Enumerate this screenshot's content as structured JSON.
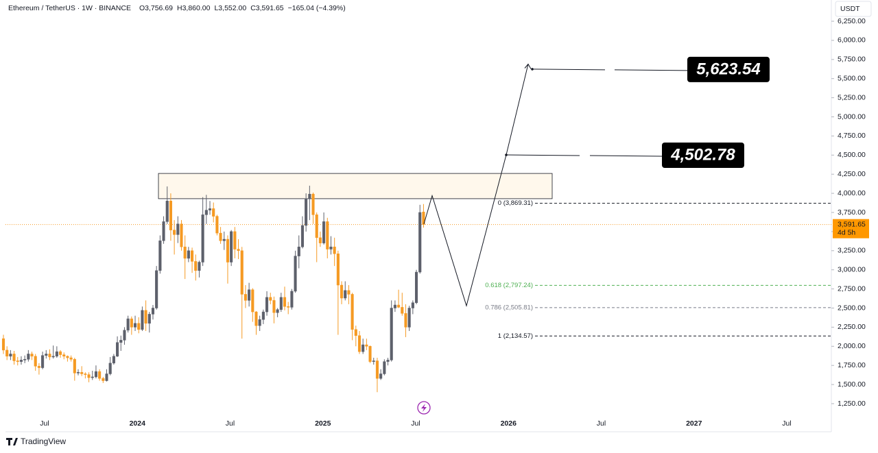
{
  "chart_data": {
    "type": "candlestick",
    "title": "Ethereum / TetherUS · 1W · BINANCE",
    "ohlc_labels": [
      "O3,756.69",
      "H3,860.00",
      "L3,552.00",
      "C3,591.65",
      "−165.04 (−4.39%)"
    ],
    "currency": "USDT",
    "up_color": "#5d606b",
    "down_color": "#f59a23",
    "ylim": [
      1250,
      6250
    ],
    "yticks": [
      {
        "value": 1250,
        "label": "1,250.00"
      },
      {
        "value": 1500,
        "label": "1,500.00"
      },
      {
        "value": 1750,
        "label": "1,750.00"
      },
      {
        "value": 2000,
        "label": "2,000.00"
      },
      {
        "value": 2250,
        "label": "2,250.00"
      },
      {
        "value": 2500,
        "label": "2,500.00"
      },
      {
        "value": 2750,
        "label": "2,750.00"
      },
      {
        "value": 3000,
        "label": "3,000.00"
      },
      {
        "value": 3250,
        "label": "3,250.00"
      },
      {
        "value": 3500,
        "label": "3,500.00"
      },
      {
        "value": 3750,
        "label": "3,750.00"
      },
      {
        "value": 4000,
        "label": "4,000.00"
      },
      {
        "value": 4250,
        "label": "4,250.00"
      },
      {
        "value": 4500,
        "label": "4,500.00"
      },
      {
        "value": 4750,
        "label": "4,750.00"
      },
      {
        "value": 5000,
        "label": "5,000.00"
      },
      {
        "value": 5250,
        "label": "5,250.00"
      },
      {
        "value": 5500,
        "label": "5,500.00"
      },
      {
        "value": 5750,
        "label": "5,750.00"
      },
      {
        "value": 6000,
        "label": "6,000.00"
      },
      {
        "value": 6250,
        "label": "6,250.00"
      }
    ],
    "x_labels": [
      "Jul",
      "2024",
      "Jul",
      "2025",
      "Jul",
      "2026",
      "Jul",
      "2027",
      "Jul"
    ],
    "candles": [
      [
        2100,
        2150,
        1900,
        1950
      ],
      [
        1950,
        2000,
        1820,
        1870
      ],
      [
        1870,
        1950,
        1820,
        1900
      ],
      [
        1900,
        1940,
        1760,
        1810
      ],
      [
        1810,
        1860,
        1750,
        1800
      ],
      [
        1800,
        1870,
        1760,
        1820
      ],
      [
        1820,
        1880,
        1780,
        1830
      ],
      [
        1830,
        1950,
        1800,
        1900
      ],
      [
        1900,
        1930,
        1820,
        1870
      ],
      [
        1870,
        1900,
        1680,
        1740
      ],
      [
        1740,
        1780,
        1630,
        1720
      ],
      [
        1720,
        1930,
        1700,
        1880
      ],
      [
        1880,
        1950,
        1840,
        1900
      ],
      [
        1900,
        1960,
        1820,
        1860
      ],
      [
        1860,
        2010,
        1840,
        1870
      ],
      [
        1870,
        2000,
        1850,
        1930
      ],
      [
        1930,
        1950,
        1850,
        1890
      ],
      [
        1890,
        1920,
        1830,
        1870
      ],
      [
        1870,
        1880,
        1800,
        1850
      ],
      [
        1850,
        1880,
        1800,
        1830
      ],
      [
        1830,
        1850,
        1550,
        1650
      ],
      [
        1650,
        1700,
        1620,
        1660
      ],
      [
        1660,
        1740,
        1610,
        1640
      ],
      [
        1640,
        1660,
        1580,
        1630
      ],
      [
        1630,
        1660,
        1530,
        1590
      ],
      [
        1590,
        1680,
        1560,
        1600
      ],
      [
        1600,
        1750,
        1580,
        1670
      ],
      [
        1670,
        1700,
        1550,
        1580
      ],
      [
        1580,
        1600,
        1520,
        1550
      ],
      [
        1550,
        1700,
        1540,
        1640
      ],
      [
        1640,
        1860,
        1620,
        1780
      ],
      [
        1780,
        1900,
        1760,
        1870
      ],
      [
        1870,
        2130,
        1860,
        2050
      ],
      [
        2050,
        2140,
        1940,
        2080
      ],
      [
        2080,
        2250,
        2020,
        2210
      ],
      [
        2210,
        2400,
        2180,
        2360
      ],
      [
        2360,
        2390,
        2150,
        2250
      ],
      [
        2250,
        2400,
        2200,
        2300
      ],
      [
        2300,
        2380,
        2170,
        2220
      ],
      [
        2220,
        2520,
        2200,
        2470
      ],
      [
        2470,
        2600,
        2200,
        2300
      ],
      [
        2300,
        2450,
        2180,
        2420
      ],
      [
        2420,
        2540,
        2350,
        2500
      ],
      [
        2500,
        3050,
        2480,
        2990
      ],
      [
        2990,
        3450,
        2950,
        3380
      ],
      [
        3380,
        3700,
        3340,
        3630
      ],
      [
        3630,
        4090,
        3600,
        3900
      ],
      [
        3900,
        4000,
        3380,
        3520
      ],
      [
        3520,
        3650,
        3200,
        3460
      ],
      [
        3460,
        3700,
        3350,
        3600
      ],
      [
        3600,
        3650,
        3250,
        3300
      ],
      [
        3300,
        3450,
        2880,
        3150
      ],
      [
        3150,
        3300,
        3100,
        3250
      ],
      [
        3250,
        3290,
        2960,
        3110
      ],
      [
        3110,
        3200,
        2860,
        2990
      ],
      [
        2990,
        3120,
        2900,
        3100
      ],
      [
        3100,
        3950,
        3050,
        3720
      ],
      [
        3720,
        3980,
        3600,
        3780
      ],
      [
        3780,
        3900,
        3720,
        3800
      ],
      [
        3800,
        3880,
        3620,
        3700
      ],
      [
        3700,
        3720,
        3450,
        3480
      ],
      [
        3480,
        3560,
        3340,
        3380
      ],
      [
        3380,
        3500,
        3260,
        3400
      ],
      [
        3400,
        3450,
        2820,
        3100
      ],
      [
        3100,
        3520,
        3050,
        3500
      ],
      [
        3500,
        3560,
        3150,
        3270
      ],
      [
        3270,
        3400,
        3140,
        3250
      ],
      [
        3250,
        3300,
        2100,
        2680
      ],
      [
        2680,
        2800,
        2500,
        2600
      ],
      [
        2600,
        2830,
        2520,
        2740
      ],
      [
        2740,
        2760,
        2320,
        2450
      ],
      [
        2450,
        2460,
        2150,
        2270
      ],
      [
        2270,
        2400,
        2200,
        2350
      ],
      [
        2350,
        2480,
        2290,
        2450
      ],
      [
        2450,
        2720,
        2400,
        2640
      ],
      [
        2640,
        2700,
        2550,
        2600
      ],
      [
        2600,
        2650,
        2300,
        2440
      ],
      [
        2440,
        2500,
        2380,
        2480
      ],
      [
        2480,
        2700,
        2450,
        2640
      ],
      [
        2640,
        2780,
        2470,
        2520
      ],
      [
        2520,
        2580,
        2420,
        2510
      ],
      [
        2510,
        2750,
        2480,
        2720
      ],
      [
        2720,
        3250,
        2700,
        3180
      ],
      [
        3180,
        3450,
        3020,
        3300
      ],
      [
        3300,
        3700,
        3280,
        3580
      ],
      [
        3580,
        4000,
        3500,
        3930
      ],
      [
        3930,
        4100,
        3650,
        3990
      ],
      [
        3990,
        4010,
        3600,
        3720
      ],
      [
        3720,
        3750,
        3100,
        3420
      ],
      [
        3420,
        3500,
        3300,
        3350
      ],
      [
        3350,
        3750,
        3330,
        3630
      ],
      [
        3630,
        3680,
        3150,
        3270
      ],
      [
        3270,
        3440,
        3200,
        3300
      ],
      [
        3300,
        3420,
        3050,
        3210
      ],
      [
        3210,
        3250,
        2150,
        2800
      ],
      [
        2800,
        2850,
        2550,
        2630
      ],
      [
        2630,
        2850,
        2600,
        2730
      ],
      [
        2730,
        2800,
        2550,
        2680
      ],
      [
        2680,
        2700,
        2080,
        2220
      ],
      [
        2220,
        2270,
        2000,
        2140
      ],
      [
        2140,
        2200,
        1900,
        1930
      ],
      [
        1930,
        2100,
        1900,
        2020
      ],
      [
        2020,
        2100,
        1950,
        2000
      ],
      [
        2000,
        2010,
        1780,
        1800
      ],
      [
        1800,
        1850,
        1760,
        1810
      ],
      [
        1810,
        1850,
        1400,
        1580
      ],
      [
        1580,
        1700,
        1560,
        1640
      ],
      [
        1640,
        1830,
        1620,
        1800
      ],
      [
        1800,
        1850,
        1750,
        1820
      ],
      [
        1820,
        2600,
        1800,
        2500
      ],
      [
        2500,
        2600,
        2450,
        2540
      ],
      [
        2540,
        2740,
        2500,
        2510
      ],
      [
        2510,
        2700,
        2400,
        2430
      ],
      [
        2430,
        2550,
        2120,
        2250
      ],
      [
        2250,
        2530,
        2200,
        2500
      ],
      [
        2500,
        2600,
        2420,
        2570
      ],
      [
        2570,
        3000,
        2550,
        2970
      ],
      [
        2970,
        3850,
        2950,
        3750
      ],
      [
        3756.69,
        3860,
        3552,
        3591.65
      ]
    ],
    "last_price": 3591.65,
    "last_price_label": "3,591.65",
    "countdown": "4d 5h",
    "resistance_zone": [
      3930,
      4260
    ],
    "fib_levels": [
      {
        "label": "0 (3,869.31)",
        "value": 3869.31,
        "color": "#131722"
      },
      {
        "label": "0.618 (2,797.24)",
        "value": 2797.24,
        "color": "#4caf50"
      },
      {
        "label": "0.786 (2,505.81)",
        "value": 2505.81,
        "color": "#787b86"
      },
      {
        "label": "1 (2,134.57)",
        "value": 2134.57,
        "color": "#131722"
      }
    ],
    "projection": [
      3600,
      3970,
      2530,
      4502.78,
      5690
    ],
    "targets": [
      {
        "value": 5623.54,
        "label": "5,623.54"
      },
      {
        "value": 4502.78,
        "label": "4,502.78"
      }
    ],
    "brand": "TradingView"
  }
}
